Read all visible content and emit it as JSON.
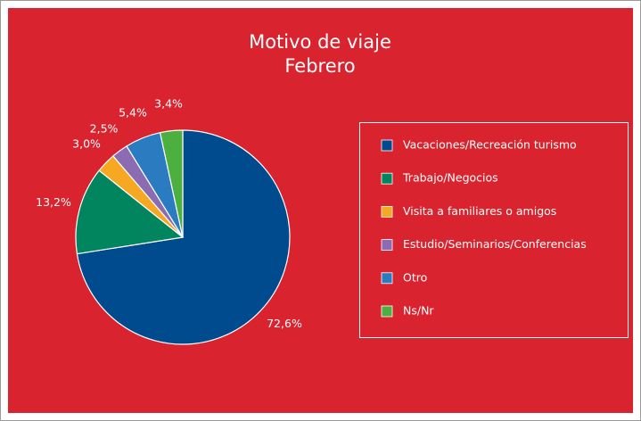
{
  "chart_data": {
    "type": "pie",
    "title": "Motivo de viaje",
    "subtitle": "Febrero",
    "categories": [
      "Vacaciones/Recreación turismo",
      "Trabajo/Negocios",
      "Visita a familiares o amigos",
      "Estudio/Seminarios/Conferencias",
      "Otro",
      "Ns/Nr"
    ],
    "values": [
      72.6,
      13.2,
      3.0,
      2.5,
      5.4,
      3.4
    ],
    "value_labels": [
      "72,6%",
      "13,2%",
      "3,0%",
      "2,5%",
      "5,4%",
      "3,4%"
    ],
    "colors": [
      "#004b8d",
      "#00855f",
      "#f7a823",
      "#8b6bb1",
      "#2a7bc0",
      "#4caf3f"
    ],
    "legend": "right"
  }
}
